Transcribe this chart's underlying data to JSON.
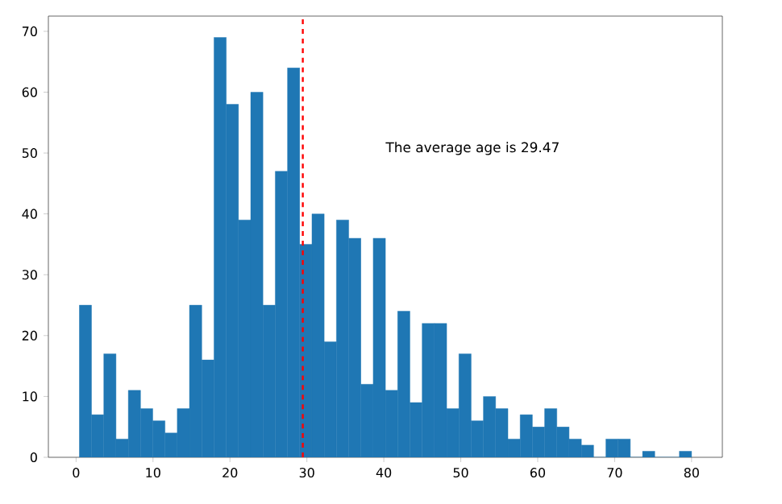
{
  "chart_data": {
    "type": "histogram",
    "bins": [
      0.42,
      2.01,
      3.6,
      5.19,
      6.79,
      8.38,
      9.97,
      11.56,
      13.15,
      14.74,
      16.34,
      17.93,
      19.52,
      21.11,
      22.7,
      24.29,
      25.89,
      27.48,
      29.07,
      30.66,
      32.25,
      33.84,
      35.44,
      37.03,
      38.62,
      40.21,
      41.8,
      43.39,
      44.98,
      46.58,
      48.17,
      49.76,
      51.35,
      52.94,
      54.53,
      56.13,
      57.72,
      59.31,
      60.9,
      62.49,
      64.08,
      65.68,
      67.27,
      68.86,
      70.45,
      72.04,
      73.63,
      75.22,
      76.82,
      78.41,
      80.0
    ],
    "values": [
      25,
      7,
      17,
      3,
      11,
      8,
      6,
      4,
      8,
      25,
      16,
      69,
      58,
      39,
      60,
      25,
      47,
      64,
      35,
      40,
      19,
      39,
      36,
      12,
      36,
      11,
      24,
      9,
      22,
      22,
      8,
      17,
      6,
      10,
      8,
      3,
      7,
      5,
      8,
      5,
      3,
      2,
      0,
      3,
      3,
      0,
      1,
      0,
      0,
      1
    ],
    "color": "#1f77b4",
    "xlim": [
      -3.6,
      84
    ],
    "ylim": [
      0,
      72.5
    ],
    "xticks": [
      0,
      10,
      20,
      30,
      40,
      50,
      60,
      70,
      80
    ],
    "yticks": [
      0,
      10,
      20,
      30,
      40,
      50,
      60,
      70
    ],
    "ref_lines": [
      {
        "axis": "x",
        "value": 29.47,
        "color": "#ff0000",
        "line_style": "dashed"
      }
    ],
    "annotations": [
      "The average age is 29.47"
    ]
  }
}
